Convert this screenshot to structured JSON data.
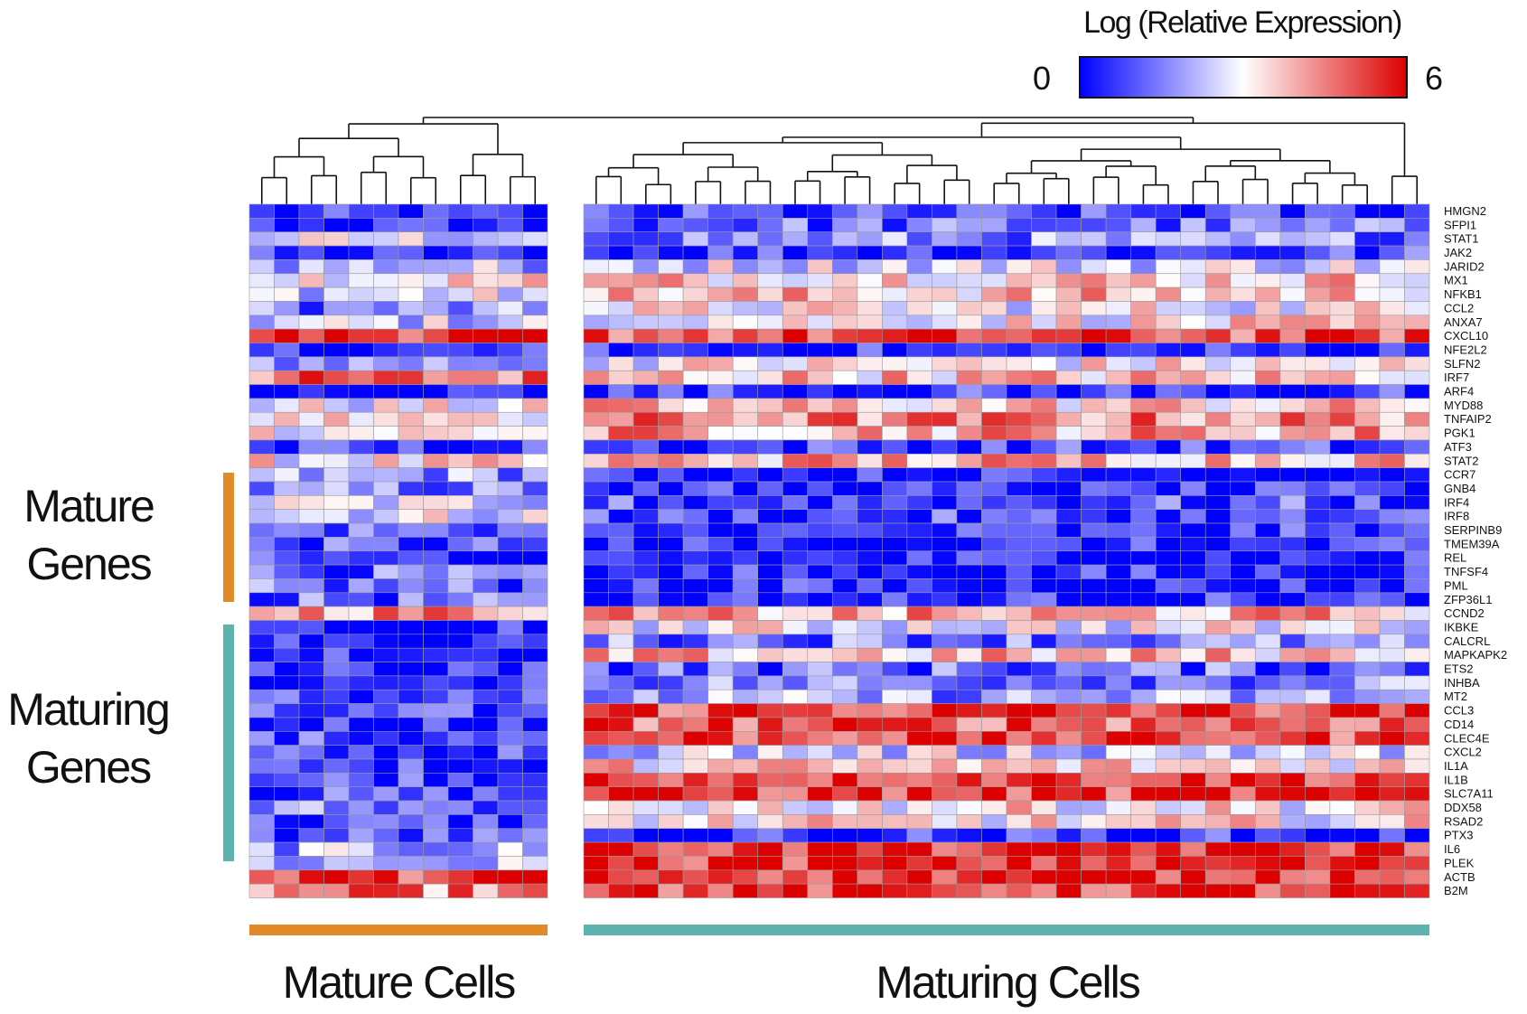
{
  "legend": {
    "title": "Log (Relative Expression)",
    "min_label": "0",
    "max_label": "6",
    "low_color": "#0000ff",
    "mid_color": "#ffffff",
    "high_color": "#dd0000"
  },
  "row_groups": {
    "mature_genes": "Mature\nGenes",
    "maturing_genes": "Maturing\nGenes",
    "mature_color": "#e08a2a",
    "maturing_color": "#5fb3ae"
  },
  "column_groups": {
    "mature_cells": "Mature Cells",
    "maturing_cells": "Maturing Cells"
  },
  "chart_data": {
    "type": "heatmap",
    "value_range": [
      0,
      6
    ],
    "genes": [
      "HMGN2",
      "SFPI1",
      "STAT1",
      "JAK2",
      "JARID2",
      "MX1",
      "NFKB1",
      "CCL2",
      "ANXA7",
      "CXCL10",
      "NFE2L2",
      "SLFN2",
      "IRF7",
      "ARF4",
      "MYD88",
      "TNFAIP2",
      "PGK1",
      "ATF3",
      "STAT2",
      "CCR7",
      "GNB4",
      "IRF4",
      "IRF8",
      "SERPINB9",
      "TMEM39A",
      "REL",
      "TNFSF4",
      "PML",
      "ZFP36L1",
      "CCND2",
      "IKBKE",
      "CALCRL",
      "MAPKAPK2",
      "ETS2",
      "INHBA",
      "MT2",
      "CCL3",
      "CD14",
      "CLEC4E",
      "CXCL2",
      "IL1A",
      "IL1B",
      "SLC7A11",
      "DDX58",
      "RSAD2",
      "PTX3",
      "IL6",
      "PLEK",
      "ACTB",
      "B2M"
    ],
    "mature_cells_count": 12,
    "maturing_cells_count": 34,
    "mature_profile": [
      0.3,
      0.4,
      2.6,
      0.3,
      2.2,
      3.4,
      2.6,
      1.5,
      2.4,
      5.6,
      0.4,
      1.9,
      4.6,
      0.4,
      2.8,
      3.3,
      3.3,
      0.5,
      3.1,
      1.8,
      1.4,
      2.6,
      2.8,
      1.3,
      0.8,
      0.5,
      1.1,
      1.2,
      1.1,
      4.4,
      0.6,
      0.3,
      0.8,
      0.3,
      0.5,
      0.8,
      0.6,
      0.6,
      0.8,
      0.6,
      0.6,
      1.0,
      0.8,
      1.5,
      0.8,
      0.9,
      2.0,
      2.0,
      5.4,
      4.4
    ],
    "maturing_profile": [
      0.6,
      1.2,
      1.6,
      0.8,
      2.7,
      3.7,
      3.7,
      3.0,
      3.2,
      5.1,
      0.4,
      3.1,
      3.7,
      0.6,
      3.6,
      4.4,
      4.1,
      0.7,
      4.0,
      0.3,
      0.3,
      0.9,
      0.7,
      0.5,
      0.3,
      0.4,
      0.4,
      0.4,
      0.4,
      3.9,
      2.9,
      1.5,
      3.7,
      1.2,
      1.6,
      1.8,
      5.2,
      5.0,
      5.2,
      2.5,
      3.5,
      5.5,
      5.3,
      3.2,
      3.2,
      0.5,
      5.5,
      5.5,
      5.6,
      5.3
    ]
  }
}
